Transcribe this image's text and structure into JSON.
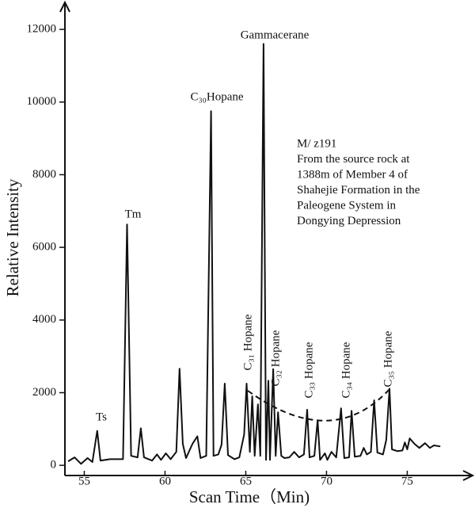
{
  "chart_data": {
    "type": "line",
    "x_label": "Scan Time（Min)",
    "y_label": "Relative Intensity",
    "xlim": [
      53.8,
      78.95
    ],
    "ylim": [
      -280,
      12700
    ],
    "xticks": [
      55,
      60,
      65,
      70,
      75
    ],
    "yticks": [
      0,
      2000,
      4000,
      6000,
      8000,
      10000,
      12000
    ],
    "color": "#111111",
    "series": [
      {
        "name": "M/ z191",
        "x": [
          54.0,
          54.4,
          54.8,
          55.2,
          55.5,
          55.8,
          56.0,
          56.6,
          57.4,
          57.65,
          57.9,
          58.3,
          58.5,
          58.7,
          59.2,
          59.5,
          59.75,
          60.05,
          60.35,
          60.7,
          60.9,
          61.1,
          61.3,
          61.7,
          62.0,
          62.2,
          62.55,
          62.85,
          63.0,
          63.3,
          63.5,
          63.7,
          63.9,
          64.3,
          64.6,
          64.9,
          65.05,
          65.25,
          65.4,
          65.55,
          65.75,
          65.9,
          66.1,
          66.25,
          66.4,
          66.5,
          66.7,
          66.85,
          67.0,
          67.2,
          67.4,
          67.7,
          68.0,
          68.3,
          68.6,
          68.8,
          68.95,
          69.25,
          69.45,
          69.6,
          69.9,
          70.05,
          70.3,
          70.6,
          70.9,
          71.1,
          71.4,
          71.55,
          71.75,
          72.1,
          72.3,
          72.5,
          72.75,
          72.95,
          73.15,
          73.5,
          73.7,
          73.9,
          74.05,
          74.4,
          74.7,
          74.85,
          75.0,
          75.15,
          75.45,
          75.75,
          76.1,
          76.4,
          76.65,
          77.05
        ],
        "values": [
          110,
          220,
          40,
          200,
          90,
          950,
          130,
          170,
          170,
          6630,
          260,
          220,
          1020,
          220,
          130,
          300,
          150,
          330,
          170,
          370,
          2660,
          590,
          200,
          590,
          800,
          200,
          260,
          9750,
          260,
          300,
          570,
          2250,
          280,
          170,
          220,
          850,
          2250,
          370,
          1900,
          260,
          1680,
          260,
          11600,
          150,
          2330,
          150,
          2650,
          260,
          1460,
          260,
          200,
          220,
          370,
          220,
          300,
          1530,
          220,
          260,
          1240,
          150,
          330,
          150,
          370,
          220,
          1570,
          200,
          220,
          1500,
          240,
          260,
          480,
          300,
          370,
          1790,
          350,
          300,
          700,
          2110,
          440,
          390,
          410,
          630,
          440,
          740,
          590,
          480,
          610,
          480,
          550,
          520
        ]
      }
    ],
    "peak_labels": [
      "Ts",
      "Tm",
      "C₃₀Hopane",
      "Gammacerane",
      "C₃₁ Hopane",
      "C₃₂ Hopane",
      "C₃₃ Hopane",
      "C₃₄ Hopane",
      "C₃₅ Hopane"
    ],
    "note": [
      "M/ z191",
      "From the source rock at",
      "1388m of Member 4 of",
      "Shahejie Formation in the",
      "Paleogene System in",
      "Dongying Depression"
    ]
  }
}
